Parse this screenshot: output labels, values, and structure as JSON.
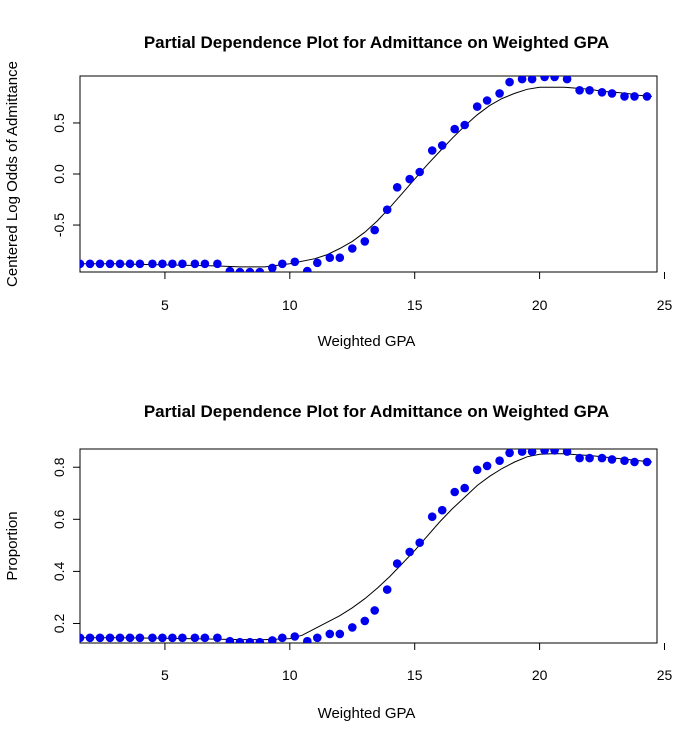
{
  "chart_data": [
    {
      "type": "scatter",
      "title": "Partial Dependence Plot for Admittance on Weighted GPA",
      "xlabel": "Weighted GPA",
      "ylabel": "Centered Log Odds of Admittance",
      "xlim": [
        1.6,
        24.7
      ],
      "ylim": [
        -0.96,
        0.96
      ],
      "xticks": [
        5,
        10,
        15,
        20,
        25
      ],
      "xtick_labels": [
        "5",
        "10",
        "15",
        "20",
        "25"
      ],
      "yticks": [
        -0.5,
        0.0,
        0.5
      ],
      "ytick_labels": [
        "-0.5",
        "0.0",
        "0.5"
      ],
      "grid": false,
      "point_color": "#0000ee",
      "series": [
        {
          "x": [
            1.6,
            2.0,
            2.4,
            2.8,
            3.2,
            3.6,
            4.0,
            4.5,
            4.9,
            5.3,
            5.7,
            6.2,
            6.6,
            7.1,
            7.6,
            8.0,
            8.4,
            8.8,
            9.3,
            9.7,
            10.2,
            10.7,
            11.1,
            11.6,
            12.0,
            12.5,
            13.0,
            13.4,
            13.9,
            14.3,
            14.8,
            15.2,
            15.7,
            16.1,
            16.6,
            17.0,
            17.5,
            17.9,
            18.4,
            18.8,
            19.3,
            19.7,
            20.2,
            20.6,
            21.1,
            21.6,
            22.0,
            22.5,
            22.9,
            23.4,
            23.8,
            24.3
          ],
          "y": [
            -0.88,
            -0.88,
            -0.88,
            -0.88,
            -0.88,
            -0.88,
            -0.88,
            -0.88,
            -0.88,
            -0.88,
            -0.88,
            -0.88,
            -0.88,
            -0.88,
            -0.95,
            -0.96,
            -0.96,
            -0.96,
            -0.92,
            -0.88,
            -0.86,
            -0.95,
            -0.87,
            -0.82,
            -0.82,
            -0.73,
            -0.66,
            -0.55,
            -0.35,
            -0.13,
            -0.05,
            0.02,
            0.23,
            0.28,
            0.44,
            0.48,
            0.66,
            0.72,
            0.79,
            0.9,
            0.93,
            0.93,
            0.95,
            0.95,
            0.93,
            0.82,
            0.82,
            0.8,
            0.79,
            0.76,
            0.76,
            0.76
          ]
        }
      ],
      "curve": {
        "x": [
          1.6,
          3,
          5,
          7,
          8,
          9,
          10,
          11,
          11.5,
          12,
          12.5,
          13,
          13.5,
          14,
          14.5,
          15,
          15.5,
          16,
          16.5,
          17,
          17.5,
          18,
          18.5,
          19,
          19.5,
          20,
          20.5,
          21,
          21.5,
          22,
          22.5,
          23,
          23.5,
          24,
          24.5
        ],
        "y": [
          -0.88,
          -0.88,
          -0.89,
          -0.9,
          -0.91,
          -0.91,
          -0.88,
          -0.83,
          -0.79,
          -0.73,
          -0.66,
          -0.57,
          -0.46,
          -0.33,
          -0.19,
          -0.05,
          0.09,
          0.22,
          0.35,
          0.47,
          0.58,
          0.67,
          0.74,
          0.79,
          0.83,
          0.85,
          0.85,
          0.85,
          0.84,
          0.83,
          0.81,
          0.8,
          0.79,
          0.77,
          0.76
        ]
      }
    },
    {
      "type": "scatter",
      "title": "Partial Dependence Plot for Admittance on Weighted GPA",
      "xlabel": "Weighted GPA",
      "ylabel": "Proportion",
      "xlim": [
        1.6,
        24.7
      ],
      "ylim": [
        0.125,
        0.87
      ],
      "xticks": [
        5,
        10,
        15,
        20,
        25
      ],
      "xtick_labels": [
        "5",
        "10",
        "15",
        "20",
        "25"
      ],
      "yticks": [
        0.2,
        0.4,
        0.6,
        0.8
      ],
      "ytick_labels": [
        "0.2",
        "0.4",
        "0.6",
        "0.8"
      ],
      "grid": false,
      "point_color": "#0000ee",
      "series": [
        {
          "x": [
            1.6,
            2.0,
            2.4,
            2.8,
            3.2,
            3.6,
            4.0,
            4.5,
            4.9,
            5.3,
            5.7,
            6.2,
            6.6,
            7.1,
            7.6,
            8.0,
            8.4,
            8.8,
            9.3,
            9.7,
            10.2,
            10.7,
            11.1,
            11.6,
            12.0,
            12.5,
            13.0,
            13.4,
            13.9,
            14.3,
            14.8,
            15.2,
            15.7,
            16.1,
            16.6,
            17.0,
            17.5,
            17.9,
            18.4,
            18.8,
            19.3,
            19.7,
            20.2,
            20.6,
            21.1,
            21.6,
            22.0,
            22.5,
            22.9,
            23.4,
            23.8,
            24.3
          ],
          "y": [
            0.145,
            0.145,
            0.145,
            0.145,
            0.145,
            0.145,
            0.145,
            0.145,
            0.145,
            0.145,
            0.145,
            0.145,
            0.145,
            0.145,
            0.132,
            0.128,
            0.128,
            0.128,
            0.135,
            0.145,
            0.15,
            0.132,
            0.145,
            0.16,
            0.16,
            0.185,
            0.21,
            0.25,
            0.33,
            0.43,
            0.475,
            0.51,
            0.61,
            0.635,
            0.705,
            0.72,
            0.79,
            0.805,
            0.825,
            0.855,
            0.86,
            0.86,
            0.865,
            0.865,
            0.86,
            0.835,
            0.835,
            0.835,
            0.83,
            0.825,
            0.82,
            0.82
          ]
        }
      ],
      "curve": {
        "x": [
          1.6,
          3,
          5,
          7,
          8,
          9,
          10,
          10.5,
          11,
          11.5,
          12,
          12.5,
          13,
          13.5,
          14,
          14.5,
          15,
          15.5,
          16,
          16.5,
          17,
          17.5,
          18,
          18.5,
          19,
          19.5,
          20,
          20.5,
          21,
          21.5,
          22,
          22.5,
          23,
          23.5,
          24,
          24.5
        ],
        "y": [
          0.145,
          0.145,
          0.143,
          0.14,
          0.138,
          0.138,
          0.142,
          0.155,
          0.18,
          0.205,
          0.23,
          0.26,
          0.295,
          0.335,
          0.38,
          0.43,
          0.48,
          0.535,
          0.59,
          0.64,
          0.685,
          0.73,
          0.765,
          0.795,
          0.82,
          0.84,
          0.85,
          0.852,
          0.852,
          0.848,
          0.845,
          0.84,
          0.835,
          0.83,
          0.825,
          0.82
        ]
      }
    }
  ]
}
